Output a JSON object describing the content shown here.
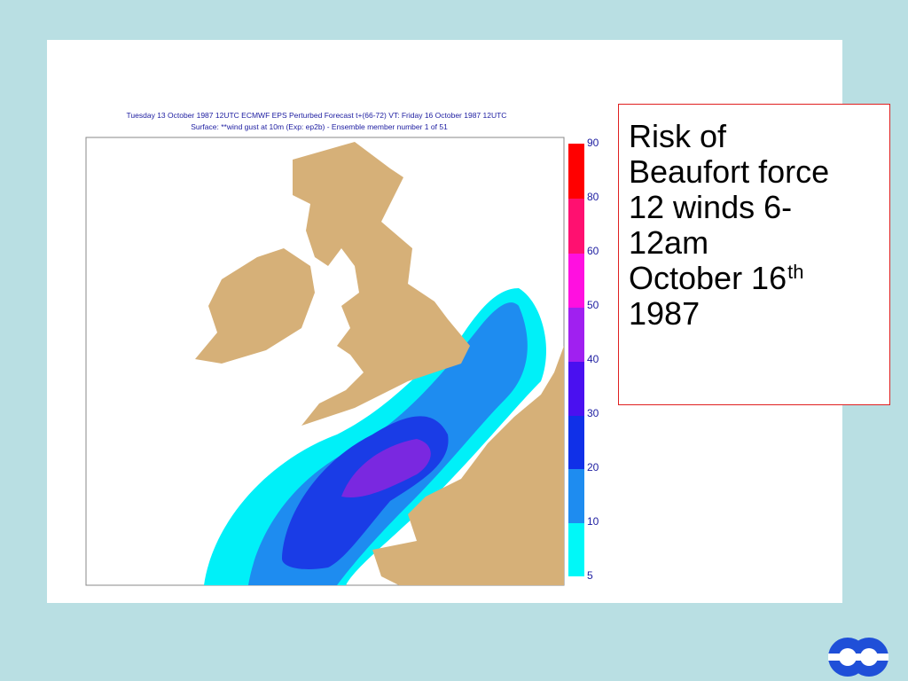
{
  "map": {
    "title_line1": "Tuesday 13 October 1987 12UTC ECMWF  EPS Perturbed Forecast t+(66-72) VT: Friday 16 October 1987 12UTC",
    "title_line2": "Surface: **wind gust at 10m (Exp: ep2b) - Ensemble member number 1 of  51",
    "colorbar_labels": [
      90,
      80,
      60,
      50,
      40,
      30,
      20,
      10,
      5
    ]
  },
  "text_box": {
    "lines": [
      "Risk of",
      "Beaufort force",
      "12 winds 6-",
      "12am",
      "October 16",
      "1987"
    ],
    "superscript": "th"
  }
}
